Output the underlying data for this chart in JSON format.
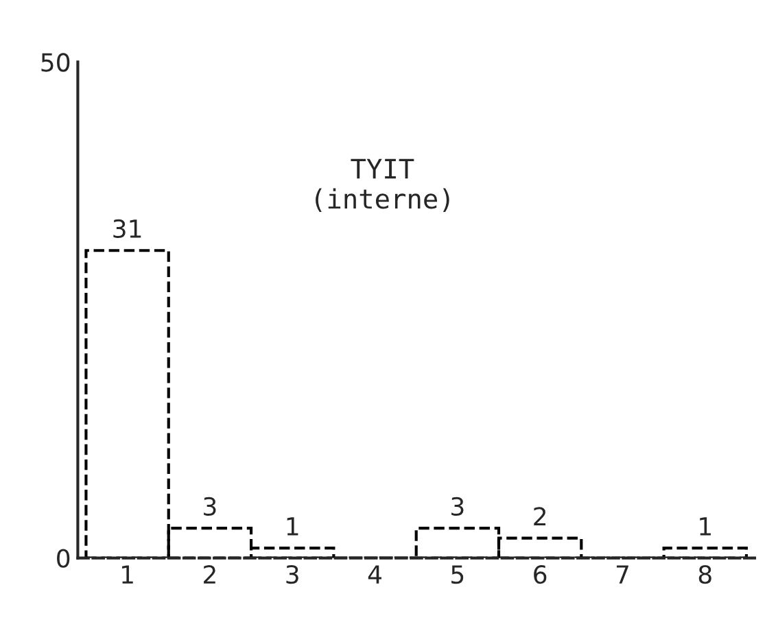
{
  "chart_data": {
    "type": "bar",
    "annotations": [
      "TYIT\n(interne)"
    ],
    "categories": [
      "1",
      "2",
      "3",
      "4",
      "5",
      "6",
      "7",
      "8"
    ],
    "values": [
      31,
      3,
      1,
      0,
      3,
      2,
      0,
      1
    ],
    "color": "#000000",
    "line_style": "dashed",
    "value_labels": [
      "31",
      "3",
      "1",
      null,
      "3",
      "2",
      null,
      "1"
    ],
    "ylim": [
      0,
      50
    ],
    "yticks": [
      0,
      50
    ],
    "grid": false
  }
}
